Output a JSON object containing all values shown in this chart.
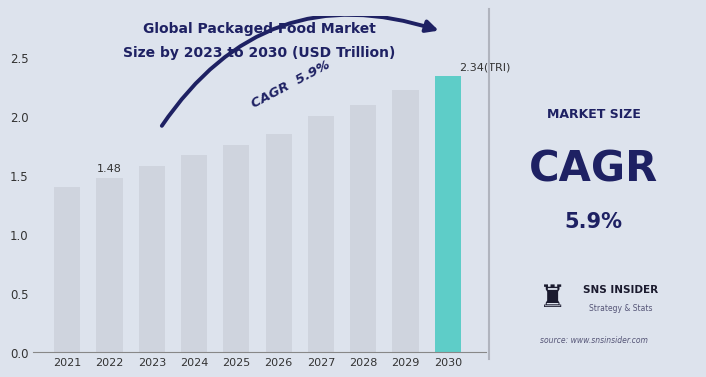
{
  "years": [
    2021,
    2022,
    2023,
    2024,
    2025,
    2026,
    2027,
    2028,
    2029,
    2030
  ],
  "values": [
    1.4,
    1.48,
    1.58,
    1.67,
    1.76,
    1.85,
    2.0,
    2.1,
    2.22,
    2.34
  ],
  "bar_colors": [
    "#cfd4de",
    "#cfd4de",
    "#cfd4de",
    "#cfd4de",
    "#cfd4de",
    "#cfd4de",
    "#cfd4de",
    "#cfd4de",
    "#cfd4de",
    "#5ecdc8"
  ],
  "highlight_label": "2.34(TRI)",
  "label_2022_value": "1.48",
  "cagr_text": "CAGR  5.9%",
  "title_line1": "Global Packaged Food Market",
  "title_line2": "Size by 2023 to 2030 (USD Trillion)",
  "chart_bg": "#dde3ed",
  "sidebar_bg": "#c5c8d0",
  "market_size_label": "MARKET SIZE",
  "cagr_label": "CAGR",
  "cagr_value": "5.9%",
  "source_text": "source: www.snsinsider.com",
  "sns_text": "SNS INSIDER",
  "sns_sub": "Strategy & Stats",
  "dark_navy": "#1e2163",
  "ylim": [
    0.0,
    2.85
  ],
  "yticks": [
    0.0,
    0.5,
    1.0,
    1.5,
    2.0,
    2.5
  ]
}
